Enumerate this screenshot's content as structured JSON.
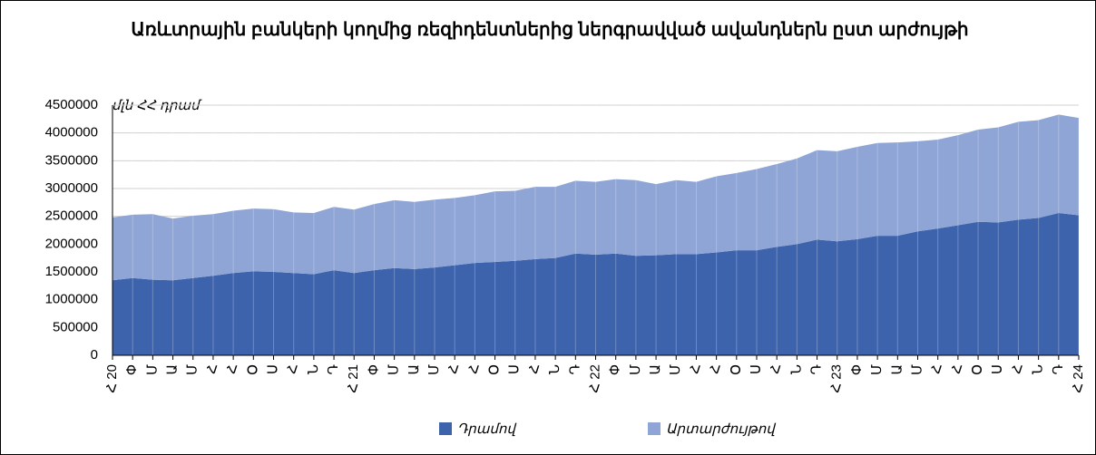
{
  "chart_data": {
    "type": "stacked_area",
    "title": "Առևտրային բանկերի կողմից ռեզիդենտներից ներգրավված ավանդներն ըստ արժույթի",
    "y_axis_label": "մլն ՀՀ դրամ",
    "categories": [
      "Հ 20",
      "Փ",
      "Մ",
      "Ա",
      "Մ",
      "Հ",
      "Հ",
      "Օ",
      "Ս",
      "Հ",
      "Ն",
      "Դ",
      "Հ 21",
      "Փ",
      "Մ",
      "Ա",
      "Մ",
      "Հ",
      "Հ",
      "Օ",
      "Ս",
      "Հ",
      "Ն",
      "Դ",
      "Հ 22",
      "Փ",
      "Մ",
      "Ա",
      "Մ",
      "Հ",
      "Հ",
      "Օ",
      "Ս",
      "Հ",
      "Ն",
      "Դ",
      "Հ 23",
      "Փ",
      "Մ",
      "Ա",
      "Մ",
      "Հ",
      "Հ",
      "Օ",
      "Ս",
      "Հ",
      "Ն",
      "Դ",
      "Հ 24"
    ],
    "series": [
      {
        "name": "Դրամով",
        "color": "#3e63ad",
        "values": [
          1350000,
          1390000,
          1360000,
          1350000,
          1390000,
          1430000,
          1480000,
          1510000,
          1500000,
          1480000,
          1460000,
          1530000,
          1480000,
          1530000,
          1570000,
          1550000,
          1580000,
          1620000,
          1660000,
          1680000,
          1700000,
          1730000,
          1750000,
          1830000,
          1810000,
          1830000,
          1790000,
          1800000,
          1820000,
          1820000,
          1850000,
          1890000,
          1890000,
          1950000,
          2000000,
          2080000,
          2050000,
          2090000,
          2150000,
          2150000,
          2230000,
          2280000,
          2340000,
          2400000,
          2390000,
          2440000,
          2470000,
          2560000,
          2520000
        ]
      },
      {
        "name": "Արտարժույթով",
        "color": "#8ea5d6",
        "values": [
          1130000,
          1140000,
          1180000,
          1110000,
          1120000,
          1110000,
          1120000,
          1130000,
          1130000,
          1090000,
          1100000,
          1140000,
          1140000,
          1190000,
          1220000,
          1210000,
          1220000,
          1210000,
          1220000,
          1270000,
          1260000,
          1300000,
          1280000,
          1310000,
          1310000,
          1340000,
          1360000,
          1280000,
          1330000,
          1300000,
          1370000,
          1390000,
          1460000,
          1490000,
          1540000,
          1610000,
          1620000,
          1660000,
          1670000,
          1680000,
          1620000,
          1600000,
          1620000,
          1660000,
          1710000,
          1760000,
          1760000,
          1770000,
          1750000
        ]
      }
    ],
    "ylim": [
      0,
      4500000
    ],
    "yticks": [
      0,
      500000,
      1000000,
      1500000,
      2000000,
      2500000,
      3000000,
      3500000,
      4000000,
      4500000
    ],
    "grid": true
  }
}
